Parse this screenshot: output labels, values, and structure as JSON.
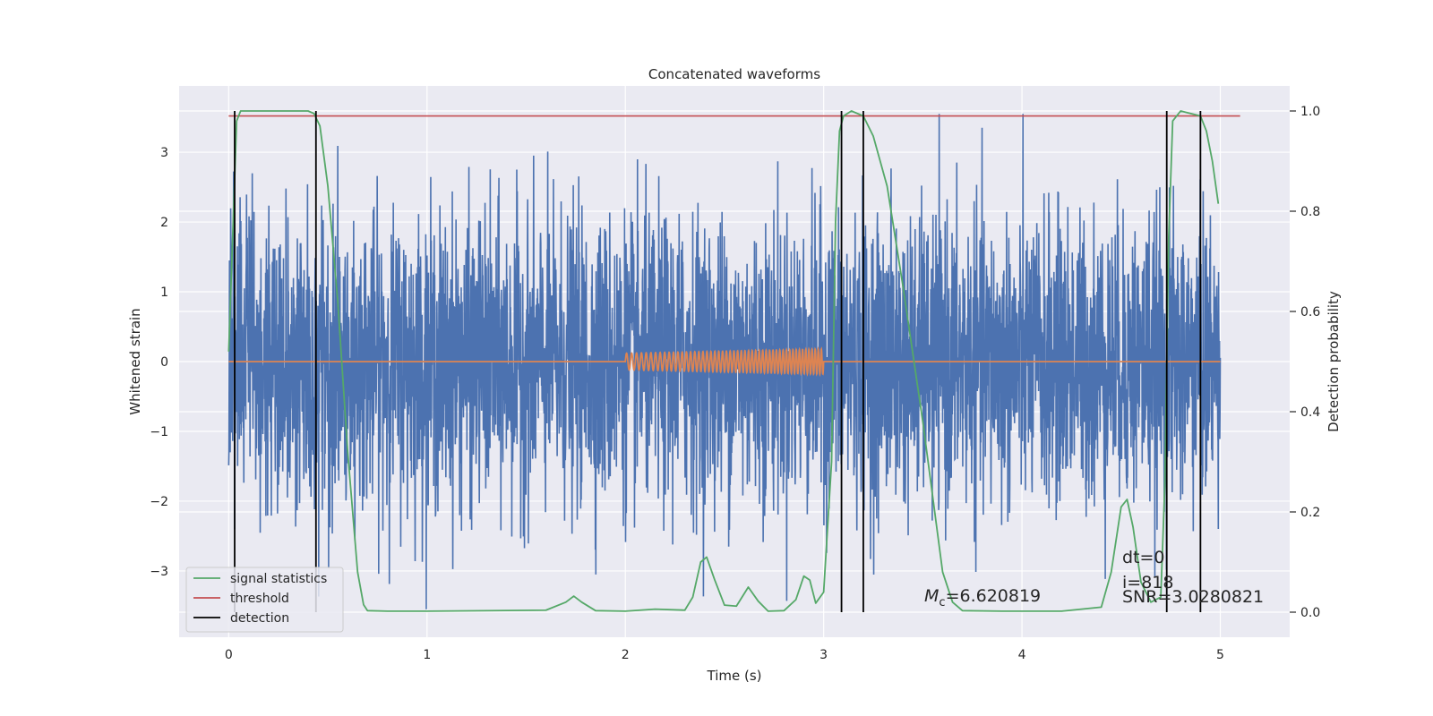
{
  "chart_data": {
    "type": "line",
    "title": "Concatenated waveforms",
    "xlabel": "Time (s)",
    "ylabel": "Whitened strain",
    "ylabel_right": "Detection probability",
    "xlim": [
      -0.25,
      5.35
    ],
    "ylim": [
      -3.95,
      3.95
    ],
    "ylim_right": [
      -0.05,
      1.05
    ],
    "xticks": [
      0,
      1,
      2,
      3,
      4,
      5
    ],
    "yticks": [
      -3,
      -2,
      -1,
      0,
      1,
      2,
      3
    ],
    "yticks_right": [
      0.0,
      0.2,
      0.4,
      0.6,
      0.8,
      1.0
    ],
    "ytick_right_labels": [
      "0.0",
      "0.2",
      "0.4",
      "0.6",
      "0.8",
      "1.0"
    ],
    "ytick_labels": [
      "−3",
      "−2",
      "−1",
      "0",
      "1",
      "2",
      "3"
    ],
    "grid": true,
    "colors": {
      "background": "#eaeaf2",
      "strain": "#4c72b0",
      "template": "#dd8452",
      "signal_statistics": "#55a868",
      "threshold": "#c44e52",
      "detection": "#000000"
    },
    "strain": {
      "x_range": [
        0,
        5
      ],
      "typical_amplitude": 1.3,
      "max_peak": 3.55
    },
    "template": {
      "x_range": [
        2.0,
        3.0
      ],
      "amplitude_range": [
        0.12,
        0.18
      ],
      "cycles": 52
    },
    "signal_statistics": {
      "x": [
        0.0,
        0.02,
        0.04,
        0.06,
        0.08,
        0.1,
        0.15,
        0.2,
        0.3,
        0.4,
        0.43,
        0.46,
        0.5,
        0.55,
        0.6,
        0.65,
        0.68,
        0.7,
        0.8,
        1.0,
        1.6,
        1.7,
        1.74,
        1.78,
        1.85,
        2.0,
        2.15,
        2.3,
        2.34,
        2.38,
        2.41,
        2.45,
        2.5,
        2.56,
        2.62,
        2.67,
        2.72,
        2.8,
        2.86,
        2.9,
        2.93,
        2.96,
        3.0,
        3.04,
        3.06,
        3.08,
        3.1,
        3.14,
        3.2,
        3.25,
        3.32,
        3.4,
        3.5,
        3.6,
        3.65,
        3.7,
        3.9,
        4.2,
        4.4,
        4.45,
        4.5,
        4.53,
        4.56,
        4.6,
        4.65,
        4.7,
        4.72,
        4.74,
        4.76,
        4.8,
        4.9,
        4.93,
        4.96,
        4.99
      ],
      "y": [
        0.52,
        0.75,
        0.98,
        1.0,
        1.0,
        1.0,
        1.0,
        1.0,
        1.0,
        1.0,
        0.995,
        0.97,
        0.85,
        0.62,
        0.32,
        0.08,
        0.015,
        0.003,
        0.002,
        0.002,
        0.004,
        0.02,
        0.032,
        0.02,
        0.003,
        0.002,
        0.006,
        0.004,
        0.03,
        0.1,
        0.11,
        0.065,
        0.014,
        0.012,
        0.05,
        0.022,
        0.002,
        0.003,
        0.025,
        0.072,
        0.064,
        0.018,
        0.04,
        0.3,
        0.78,
        0.96,
        0.99,
        1.0,
        0.99,
        0.95,
        0.85,
        0.65,
        0.38,
        0.08,
        0.02,
        0.003,
        0.002,
        0.002,
        0.01,
        0.08,
        0.21,
        0.225,
        0.17,
        0.06,
        0.02,
        0.03,
        0.25,
        0.75,
        0.98,
        1.0,
        0.99,
        0.96,
        0.9,
        0.815
      ],
      "name": "signal statistics"
    },
    "threshold": {
      "x": [
        0.0,
        5.1
      ],
      "y": [
        0.99,
        0.99
      ],
      "name": "threshold"
    },
    "detections": {
      "x": [
        0.03,
        0.44,
        3.09,
        3.2,
        4.73,
        4.9
      ],
      "y_range": [
        0.0,
        1.0
      ],
      "name": "detection"
    },
    "legend": {
      "placement": "lower-left",
      "entries": [
        "signal statistics",
        "threshold",
        "detection"
      ]
    },
    "annotations": {
      "mc_symbol": "M",
      "mc_sub": "c",
      "mc_value": "=6.620819",
      "dt": "dt=0",
      "i": "i=818",
      "snr": "SNR=3.0280821"
    }
  }
}
